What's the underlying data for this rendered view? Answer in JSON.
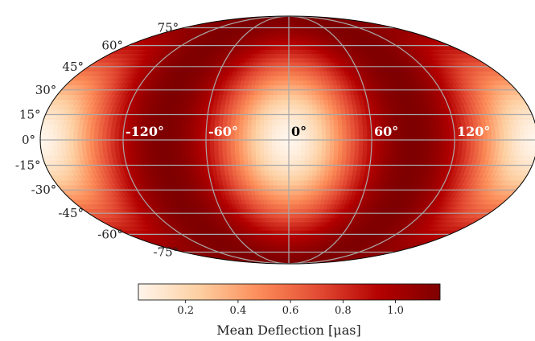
{
  "chart_data": {
    "type": "heatmap",
    "projection": "mollweide",
    "description_map": "sky map, peak at longitude 0 and 180",
    "colormap": [
      "#fff5eb",
      "#fdd0a2",
      "#fc8d59",
      "#e34a33",
      "#b30000",
      "#7f0000"
    ],
    "value_range": [
      0.02,
      1.17
    ],
    "field": {
      "min": 0.02,
      "max": 1.17,
      "peak_longitudes": [
        0,
        180,
        -180
      ],
      "period_deg": 180
    },
    "latitude_ticks": [
      75,
      60,
      45,
      30,
      15,
      0,
      -15,
      -30,
      -45,
      -60,
      -75
    ],
    "latitude_tick_labels": [
      "75°",
      "60°",
      "45°",
      "30°",
      "15°",
      "0°",
      "-15°",
      "-30°",
      "-45°",
      "-60°",
      "-75°"
    ],
    "longitude_ticks": [
      -120,
      -60,
      0,
      60,
      120
    ],
    "longitude_tick_labels": [
      "-120°",
      "-60°",
      "0°",
      "60°",
      "120°"
    ],
    "grid": true,
    "colorbar": {
      "ticks": [
        0.2,
        0.4,
        0.6,
        0.8,
        1.0
      ],
      "tick_labels": [
        "0.2",
        "0.4",
        "0.6",
        "0.8",
        "1.0"
      ],
      "label": "Mean Deflection [μas]"
    }
  }
}
